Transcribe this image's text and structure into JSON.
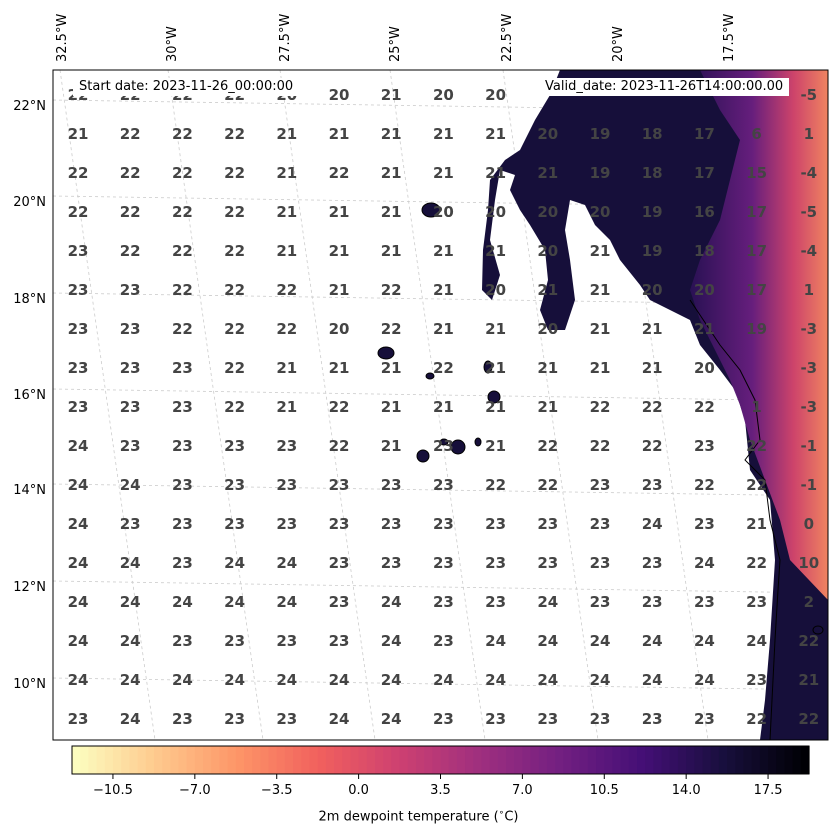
{
  "map": {
    "start_date_label": "Start date: 2023-11-26_00:00:00",
    "valid_date_label": "Valid_date: 2023-11-26T14:00:00.00",
    "lon_labels": [
      "32.5°W",
      "30°W",
      "27.5°W",
      "25°W",
      "22.5°W",
      "20°W",
      "17.5°W"
    ],
    "lat_labels": [
      "22°N",
      "20°N",
      "18°N",
      "16°N",
      "14°N",
      "12°N",
      "10°N"
    ],
    "land_color": "#160f3a",
    "ocean_color": "#ffffff",
    "grid_values": [
      [
        22,
        22,
        22,
        22,
        20,
        20,
        21,
        20,
        20,
        null,
        null,
        null,
        null,
        null,
        -5
      ],
      [
        21,
        22,
        22,
        22,
        21,
        21,
        21,
        21,
        21,
        20,
        19,
        18,
        17,
        6,
        1
      ],
      [
        22,
        22,
        22,
        22,
        21,
        22,
        21,
        21,
        21,
        21,
        19,
        18,
        17,
        15,
        -4
      ],
      [
        22,
        22,
        22,
        22,
        21,
        21,
        21,
        20,
        20,
        20,
        20,
        19,
        16,
        17,
        -5
      ],
      [
        23,
        22,
        22,
        22,
        21,
        21,
        21,
        21,
        21,
        20,
        21,
        19,
        18,
        17,
        -4
      ],
      [
        23,
        23,
        22,
        22,
        22,
        21,
        22,
        21,
        20,
        21,
        21,
        20,
        20,
        17,
        1
      ],
      [
        23,
        23,
        22,
        22,
        22,
        20,
        22,
        21,
        21,
        20,
        21,
        21,
        21,
        19,
        -3
      ],
      [
        23,
        23,
        23,
        22,
        21,
        21,
        21,
        22,
        21,
        21,
        21,
        21,
        20,
        null,
        -3
      ],
      [
        23,
        23,
        23,
        22,
        21,
        22,
        21,
        21,
        21,
        21,
        22,
        22,
        22,
        1,
        -3
      ],
      [
        24,
        23,
        23,
        23,
        23,
        22,
        21,
        23,
        21,
        22,
        22,
        22,
        23,
        22,
        -1
      ],
      [
        24,
        24,
        23,
        23,
        23,
        23,
        23,
        23,
        22,
        22,
        23,
        23,
        22,
        22,
        -1
      ],
      [
        24,
        23,
        23,
        23,
        23,
        23,
        23,
        23,
        23,
        23,
        23,
        24,
        23,
        21,
        0
      ],
      [
        24,
        24,
        23,
        24,
        24,
        23,
        23,
        23,
        23,
        23,
        23,
        23,
        24,
        22,
        10
      ],
      [
        24,
        24,
        24,
        24,
        24,
        23,
        24,
        23,
        23,
        24,
        23,
        23,
        23,
        23,
        2
      ],
      [
        24,
        24,
        23,
        23,
        23,
        23,
        24,
        23,
        24,
        24,
        24,
        24,
        24,
        24,
        22
      ],
      [
        24,
        24,
        24,
        24,
        24,
        24,
        24,
        24,
        24,
        24,
        24,
        24,
        24,
        23,
        21
      ],
      [
        23,
        24,
        23,
        23,
        23,
        24,
        24,
        23,
        23,
        23,
        23,
        23,
        23,
        22,
        22
      ]
    ]
  },
  "colorbar": {
    "label": "2m dewpoint temperature (∘C)",
    "label_display": "2m dewpoint temperature ($^\\circ$C)",
    "range": [
      -12.25,
      19.25
    ],
    "ticks": [
      {
        "value": -10.5,
        "label": "−10.5"
      },
      {
        "value": -7.0,
        "label": "−7.0"
      },
      {
        "value": -3.5,
        "label": "−3.5"
      },
      {
        "value": 0.0,
        "label": "0.0"
      },
      {
        "value": 3.5,
        "label": "3.5"
      },
      {
        "value": 7.0,
        "label": "7.0"
      },
      {
        "value": 10.5,
        "label": "10.5"
      },
      {
        "value": 14.0,
        "label": "14.0"
      },
      {
        "value": 17.5,
        "label": "17.5"
      }
    ],
    "colormap": [
      "#fcfdbf",
      "#fec98d",
      "#fd9567",
      "#f1605d",
      "#cd4071",
      "#9e2f7f",
      "#721f81",
      "#440f76",
      "#180f3d",
      "#000004"
    ]
  }
}
